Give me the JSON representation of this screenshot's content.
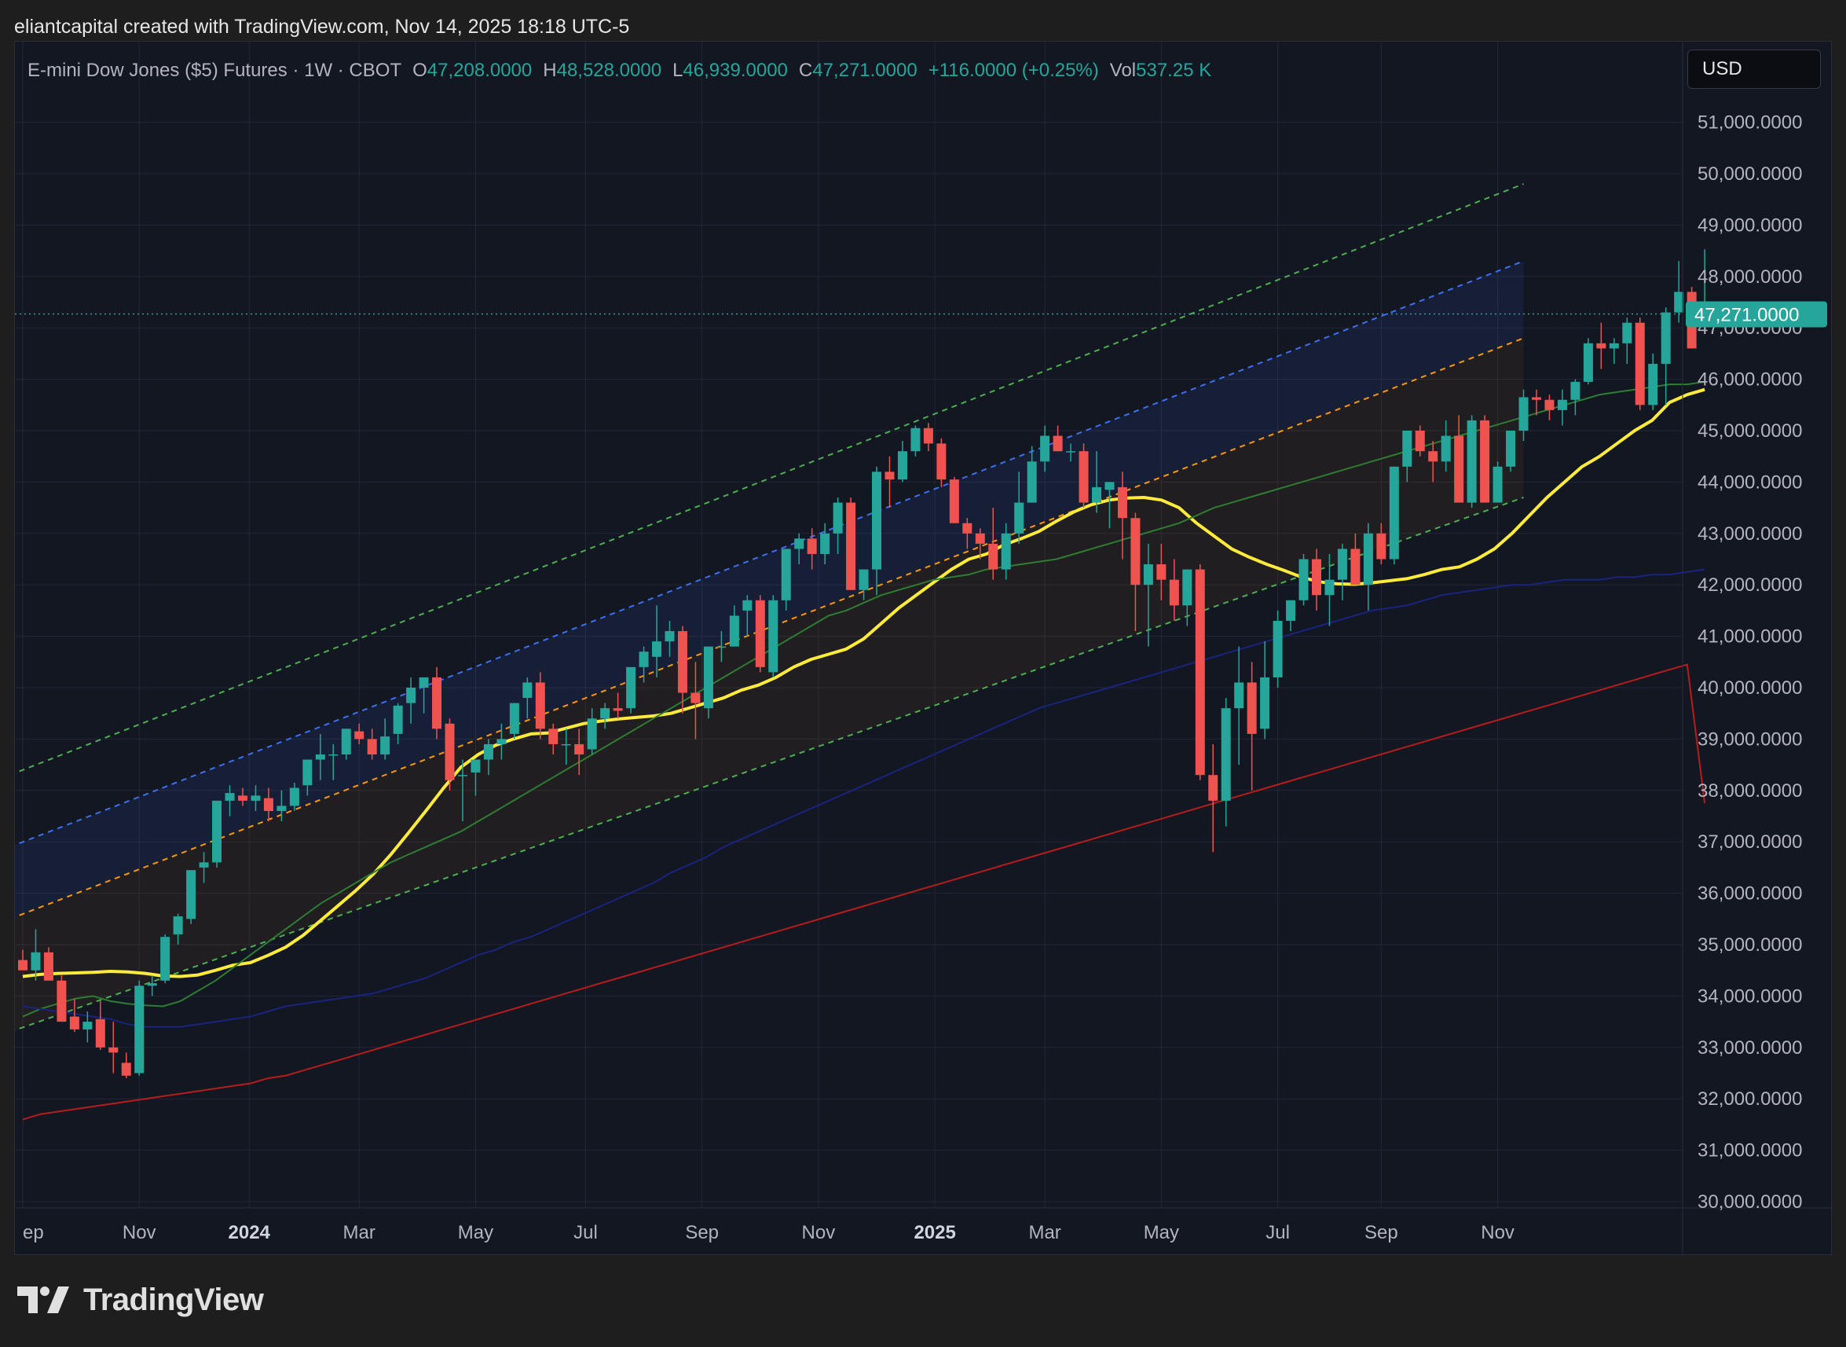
{
  "header": {
    "credit": "eliantcapital created with TradingView.com, Nov 14, 2025 18:18 UTC-5"
  },
  "legend": {
    "symbol": "E-mini Dow Jones ($5) Futures · 1W · CBOT",
    "o_label": "O",
    "o_value": "47,208.0000",
    "h_label": "H",
    "h_value": "48,528.0000",
    "l_label": "L",
    "l_value": "46,939.0000",
    "c_label": "C",
    "c_value": "47,271.0000",
    "change": "+116.0000 (+0.25%)",
    "vol_label": "Vol",
    "vol_value": "537.25 K"
  },
  "currency": "USD",
  "brand": {
    "name": "TradingView",
    "icon": "tradingview-logo-icon"
  },
  "colors": {
    "up": "#26a69a",
    "down": "#ef5350",
    "price_tag": "#26a69a",
    "ema_short": "#ffeb3b",
    "ma_mid": "#2e7d32",
    "ma_long": "#1a237e",
    "ma_200": "#b71c1c",
    "channel_upper": "#4caf50",
    "channel_mid": "#3d6ff0",
    "channel_lower": "#ff9800"
  },
  "chart_data": {
    "type": "candlestick",
    "timeframe": "1W",
    "ylim": [
      30000,
      51500
    ],
    "y_ticks": [
      "30,000.0000",
      "31,000.0000",
      "32,000.0000",
      "33,000.0000",
      "34,000.0000",
      "35,000.0000",
      "36,000.0000",
      "37,000.0000",
      "38,000.0000",
      "39,000.0000",
      "40,000.0000",
      "41,000.0000",
      "42,000.0000",
      "43,000.0000",
      "44,000.0000",
      "45,000.0000",
      "46,000.0000",
      "47,000.0000",
      "48,000.0000",
      "49,000.0000",
      "50,000.0000",
      "51,000.0000"
    ],
    "x_ticks": [
      {
        "label": "ep",
        "bold": false,
        "bar": 0
      },
      {
        "label": "Nov",
        "bold": false,
        "bar": 9
      },
      {
        "label": "2024",
        "bold": true,
        "bar": 17.5
      },
      {
        "label": "Mar",
        "bold": false,
        "bar": 26
      },
      {
        "label": "May",
        "bold": false,
        "bar": 35
      },
      {
        "label": "Jul",
        "bold": false,
        "bar": 43.5
      },
      {
        "label": "Sep",
        "bold": false,
        "bar": 52.5
      },
      {
        "label": "Nov",
        "bold": false,
        "bar": 61.5
      },
      {
        "label": "2025",
        "bold": true,
        "bar": 70.5
      },
      {
        "label": "Mar",
        "bold": false,
        "bar": 79
      },
      {
        "label": "May",
        "bold": false,
        "bar": 88
      },
      {
        "label": "Jul",
        "bold": false,
        "bar": 97
      },
      {
        "label": "Sep",
        "bold": false,
        "bar": 105
      },
      {
        "label": "Nov",
        "bold": false,
        "bar": 114
      }
    ],
    "last_price": 47271,
    "last_price_label": "47,271.0000",
    "candles": [
      [
        34700,
        34900,
        34500,
        34500
      ],
      [
        34500,
        35300,
        34300,
        34850
      ],
      [
        34850,
        34950,
        34300,
        34300
      ],
      [
        34300,
        34400,
        33500,
        33500
      ],
      [
        33600,
        33950,
        33300,
        33350
      ],
      [
        33350,
        33700,
        33100,
        33500
      ],
      [
        33550,
        33900,
        32950,
        33000
      ],
      [
        33000,
        33500,
        32500,
        32900
      ],
      [
        32700,
        32900,
        32400,
        32450
      ],
      [
        32500,
        34300,
        32450,
        34200
      ],
      [
        34200,
        34400,
        34000,
        34250
      ],
      [
        34300,
        35200,
        34250,
        35150
      ],
      [
        35200,
        35600,
        35000,
        35550
      ],
      [
        35500,
        36400,
        35400,
        36450
      ],
      [
        36500,
        36800,
        36200,
        36600
      ],
      [
        36600,
        37800,
        36500,
        37800
      ],
      [
        37800,
        38100,
        37500,
        37950
      ],
      [
        37900,
        38050,
        37700,
        37800
      ],
      [
        37800,
        38100,
        37600,
        37900
      ],
      [
        37850,
        38050,
        37400,
        37600
      ],
      [
        37600,
        38000,
        37400,
        37700
      ],
      [
        37700,
        38150,
        37600,
        38050
      ],
      [
        38100,
        38600,
        37900,
        38600
      ],
      [
        38600,
        39100,
        38200,
        38700
      ],
      [
        38700,
        38900,
        38200,
        38700
      ],
      [
        38700,
        39200,
        38600,
        39200
      ],
      [
        39150,
        39300,
        38900,
        39000
      ],
      [
        39000,
        39200,
        38600,
        38700
      ],
      [
        38700,
        39400,
        38600,
        39050
      ],
      [
        39100,
        39700,
        38900,
        39650
      ],
      [
        39700,
        40200,
        39300,
        40000
      ],
      [
        40000,
        40200,
        39500,
        40200
      ],
      [
        40200,
        40400,
        39000,
        39200
      ],
      [
        39300,
        39400,
        38000,
        38200
      ],
      [
        38300,
        38600,
        37400,
        38300
      ],
      [
        38350,
        38600,
        37900,
        38600
      ],
      [
        38600,
        39000,
        38300,
        38900
      ],
      [
        38900,
        39300,
        38600,
        39000
      ],
      [
        39100,
        39700,
        39000,
        39700
      ],
      [
        39800,
        40200,
        39400,
        40100
      ],
      [
        40100,
        40300,
        39000,
        39200
      ],
      [
        39200,
        39300,
        38700,
        38900
      ],
      [
        38900,
        39200,
        38500,
        38900
      ],
      [
        38900,
        39200,
        38300,
        38700
      ],
      [
        38800,
        39600,
        38700,
        39400
      ],
      [
        39400,
        39700,
        39200,
        39600
      ],
      [
        39600,
        39900,
        39400,
        39550
      ],
      [
        39600,
        40400,
        39500,
        40400
      ],
      [
        40400,
        40800,
        40100,
        40700
      ],
      [
        40600,
        41600,
        40200,
        40900
      ],
      [
        40900,
        41300,
        40600,
        41100
      ],
      [
        41100,
        41200,
        39500,
        39900
      ],
      [
        39900,
        40500,
        39000,
        39700
      ],
      [
        39600,
        40800,
        39400,
        40800
      ],
      [
        40800,
        41100,
        40500,
        40800
      ],
      [
        40800,
        41600,
        40800,
        41400
      ],
      [
        41500,
        41800,
        41000,
        41700
      ],
      [
        41700,
        41800,
        40300,
        40400
      ],
      [
        40300,
        41800,
        40200,
        41700
      ],
      [
        41700,
        42700,
        41500,
        42700
      ],
      [
        42700,
        43000,
        42400,
        42900
      ],
      [
        42900,
        43100,
        42300,
        42600
      ],
      [
        42600,
        43200,
        42400,
        43000
      ],
      [
        43000,
        43700,
        42600,
        43600
      ],
      [
        43600,
        43700,
        41900,
        41900
      ],
      [
        41900,
        42300,
        41700,
        42300
      ],
      [
        42300,
        44300,
        41800,
        44200
      ],
      [
        44200,
        44500,
        43500,
        44050
      ],
      [
        44050,
        44800,
        44000,
        44600
      ],
      [
        44600,
        45100,
        44500,
        45050
      ],
      [
        45050,
        45150,
        44600,
        44750
      ],
      [
        44750,
        44850,
        43900,
        44050
      ],
      [
        44050,
        44100,
        43200,
        43200
      ],
      [
        43200,
        43300,
        42700,
        43000
      ],
      [
        43000,
        43100,
        42500,
        42800
      ],
      [
        42800,
        43500,
        42100,
        42300
      ],
      [
        42300,
        43200,
        42100,
        43000
      ],
      [
        43000,
        44200,
        42800,
        43600
      ],
      [
        43600,
        44700,
        43600,
        44400
      ],
      [
        44400,
        45100,
        44200,
        44900
      ],
      [
        44900,
        45100,
        44600,
        44600
      ],
      [
        44600,
        44750,
        44400,
        44600
      ],
      [
        44600,
        44750,
        43500,
        43600
      ],
      [
        43600,
        44600,
        43400,
        43900
      ],
      [
        43850,
        44000,
        43100,
        44000
      ],
      [
        43900,
        44200,
        42500,
        43300
      ],
      [
        43300,
        43400,
        41100,
        42000
      ],
      [
        42000,
        42800,
        40800,
        42400
      ],
      [
        42400,
        42800,
        41700,
        42100
      ],
      [
        42100,
        42500,
        41300,
        41600
      ],
      [
        41600,
        42300,
        41200,
        42300
      ],
      [
        42300,
        42400,
        38200,
        38300
      ],
      [
        38300,
        38900,
        36800,
        37800
      ],
      [
        37800,
        39800,
        37300,
        39600
      ],
      [
        39600,
        40800,
        38500,
        40100
      ],
      [
        40100,
        40500,
        38000,
        39100
      ],
      [
        39200,
        40900,
        39000,
        40200
      ],
      [
        40200,
        41500,
        40000,
        41300
      ],
      [
        41300,
        41700,
        41100,
        41700
      ],
      [
        41700,
        42600,
        41600,
        42500
      ],
      [
        42500,
        42700,
        41500,
        41800
      ],
      [
        41800,
        42600,
        41200,
        42100
      ],
      [
        42100,
        42800,
        41700,
        42700
      ],
      [
        42700,
        43000,
        42000,
        42000
      ],
      [
        42000,
        43200,
        41500,
        43000
      ],
      [
        43000,
        43200,
        42400,
        42500
      ],
      [
        42500,
        44300,
        42400,
        44300
      ],
      [
        44300,
        44900,
        44000,
        45000
      ],
      [
        45000,
        45100,
        44500,
        44600
      ],
      [
        44600,
        44800,
        44000,
        44400
      ],
      [
        44400,
        45200,
        44200,
        44900
      ],
      [
        44900,
        45300,
        43600,
        43600
      ],
      [
        43600,
        45300,
        43500,
        45200
      ],
      [
        45200,
        45300,
        43600,
        43600
      ],
      [
        43600,
        44400,
        43600,
        44300
      ],
      [
        44300,
        45000,
        44200,
        45000
      ],
      [
        45000,
        45800,
        44800,
        45650
      ],
      [
        45650,
        45800,
        45300,
        45600
      ],
      [
        45600,
        45700,
        45200,
        45400
      ],
      [
        45400,
        45800,
        45100,
        45600
      ],
      [
        45600,
        46000,
        45300,
        45950
      ],
      [
        45950,
        46800,
        45900,
        46700
      ],
      [
        46700,
        47100,
        46200,
        46600
      ],
      [
        46600,
        46800,
        46300,
        46700
      ],
      [
        46700,
        47200,
        46300,
        47100
      ],
      [
        47100,
        47200,
        45400,
        45500
      ],
      [
        45500,
        46500,
        45400,
        46300
      ],
      [
        46300,
        47400,
        45500,
        47300
      ],
      [
        47300,
        48300,
        47100,
        47700
      ],
      [
        47700,
        47800,
        46600,
        46600
      ],
      [
        47208,
        48528,
        46939,
        47271
      ]
    ],
    "indicators": [
      {
        "type": "ema",
        "color": "ema_short",
        "values": [
          34380,
          34420,
          34440,
          34450,
          34460,
          34480,
          34470,
          34440,
          34390,
          34380,
          34410,
          34500,
          34600,
          34650,
          34790,
          34950,
          35180,
          35470,
          35760,
          36050,
          36370,
          36750,
          37170,
          37600,
          38040,
          38450,
          38700,
          38880,
          39000,
          39100,
          39120,
          39210,
          39300,
          39350,
          39390,
          39420,
          39450,
          39500,
          39600,
          39700,
          39800,
          39950,
          40050,
          40200,
          40400,
          40550,
          40650,
          40750,
          40950,
          41250,
          41550,
          41800,
          42050,
          42300,
          42500,
          42600,
          42780,
          42900,
          43040,
          43240,
          43420,
          43560,
          43650,
          43690,
          43700,
          43650,
          43500,
          43200,
          42950,
          42700,
          42540,
          42400,
          42280,
          42150,
          42060,
          42020,
          42010,
          42040,
          42080,
          42120,
          42200,
          42300,
          42350,
          42500,
          42700,
          43000,
          43350,
          43700,
          44000,
          44300,
          44500,
          44750,
          45000,
          45200,
          45550,
          45700,
          45800
        ]
      },
      {
        "type": "sma",
        "color": "ma_mid",
        "values": [
          33600,
          33750,
          33850,
          33950,
          34000,
          33900,
          33850,
          33820,
          33800,
          33900,
          34100,
          34300,
          34550,
          34800,
          35050,
          35300,
          35550,
          35800,
          36000,
          36200,
          36400,
          36600,
          36750,
          36900,
          37050,
          37200,
          37400,
          37600,
          37800,
          38000,
          38200,
          38400,
          38600,
          38800,
          39000,
          39200,
          39400,
          39600,
          39800,
          40000,
          40200,
          40400,
          40600,
          40800,
          41000,
          41200,
          41400,
          41500,
          41650,
          41800,
          41900,
          42000,
          42100,
          42150,
          42200,
          42300,
          42350,
          42400,
          42450,
          42500,
          42600,
          42700,
          42800,
          42900,
          43000,
          43100,
          43200,
          43350,
          43500,
          43600,
          43700,
          43800,
          43900,
          44000,
          44100,
          44200,
          44300,
          44400,
          44500,
          44600,
          44700,
          44800,
          44900,
          45000,
          45100,
          45200,
          45300,
          45400,
          45500,
          45600,
          45700,
          45750,
          45800,
          45850,
          45900,
          45900,
          45950
        ]
      },
      {
        "type": "sma",
        "color": "ma_long",
        "values": [
          33800,
          33750,
          33700,
          33650,
          33600,
          33550,
          33450,
          33400,
          33400,
          33400,
          33450,
          33500,
          33550,
          33600,
          33700,
          33800,
          33850,
          33900,
          33950,
          34000,
          34050,
          34150,
          34250,
          34350,
          34500,
          34650,
          34800,
          34900,
          35050,
          35150,
          35300,
          35450,
          35600,
          35750,
          35900,
          36050,
          36200,
          36400,
          36550,
          36700,
          36900,
          37050,
          37200,
          37350,
          37500,
          37650,
          37800,
          37950,
          38100,
          38250,
          38400,
          38550,
          38700,
          38850,
          39000,
          39150,
          39300,
          39450,
          39600,
          39700,
          39800,
          39900,
          40000,
          40100,
          40200,
          40300,
          40400,
          40500,
          40600,
          40700,
          40800,
          40900,
          41000,
          41100,
          41200,
          41300,
          41400,
          41500,
          41550,
          41600,
          41700,
          41800,
          41850,
          41900,
          41950,
          42000,
          42000,
          42050,
          42100,
          42100,
          42100,
          42150,
          42150,
          42200,
          42200,
          42250,
          42300
        ]
      },
      {
        "type": "sma",
        "color": "ma_200",
        "values": [
          31600,
          31700,
          31750,
          31800,
          31850,
          31900,
          31950,
          32000,
          32050,
          32100,
          32150,
          32200,
          32250,
          32300,
          32400,
          32450,
          32550,
          32650,
          32750,
          32850,
          32950,
          33050,
          33150,
          33250,
          33350,
          33450,
          33550,
          33650,
          33750,
          33850,
          33950,
          34050,
          34150,
          34250,
          34350,
          34450,
          34550,
          34650,
          34750,
          34850,
          34950,
          35050,
          35150,
          35250,
          35350,
          35450,
          35550,
          35650,
          35750,
          35850,
          35950,
          36050,
          36150,
          36250,
          36350,
          36450,
          36550,
          36650,
          36750,
          36850,
          36950,
          37050,
          37150,
          37250,
          37350,
          37450,
          37550,
          37650,
          37750,
          37850,
          37950,
          38050,
          38150,
          38250,
          38350,
          38450,
          38550,
          38650,
          38750,
          38850,
          38950,
          39050,
          39150,
          39250,
          39350,
          39450,
          39550,
          39650,
          39750,
          39850,
          39950,
          40050,
          40150,
          40250,
          40350,
          40450,
          37750
        ]
      }
    ],
    "channel": {
      "x_start_bar": -1,
      "x_end_bar": 116,
      "upper": [
        38300,
        49800
      ],
      "mid": [
        36900,
        48300
      ],
      "lower": [
        35500,
        46800
      ],
      "bottom": [
        33300,
        43700
      ]
    }
  }
}
